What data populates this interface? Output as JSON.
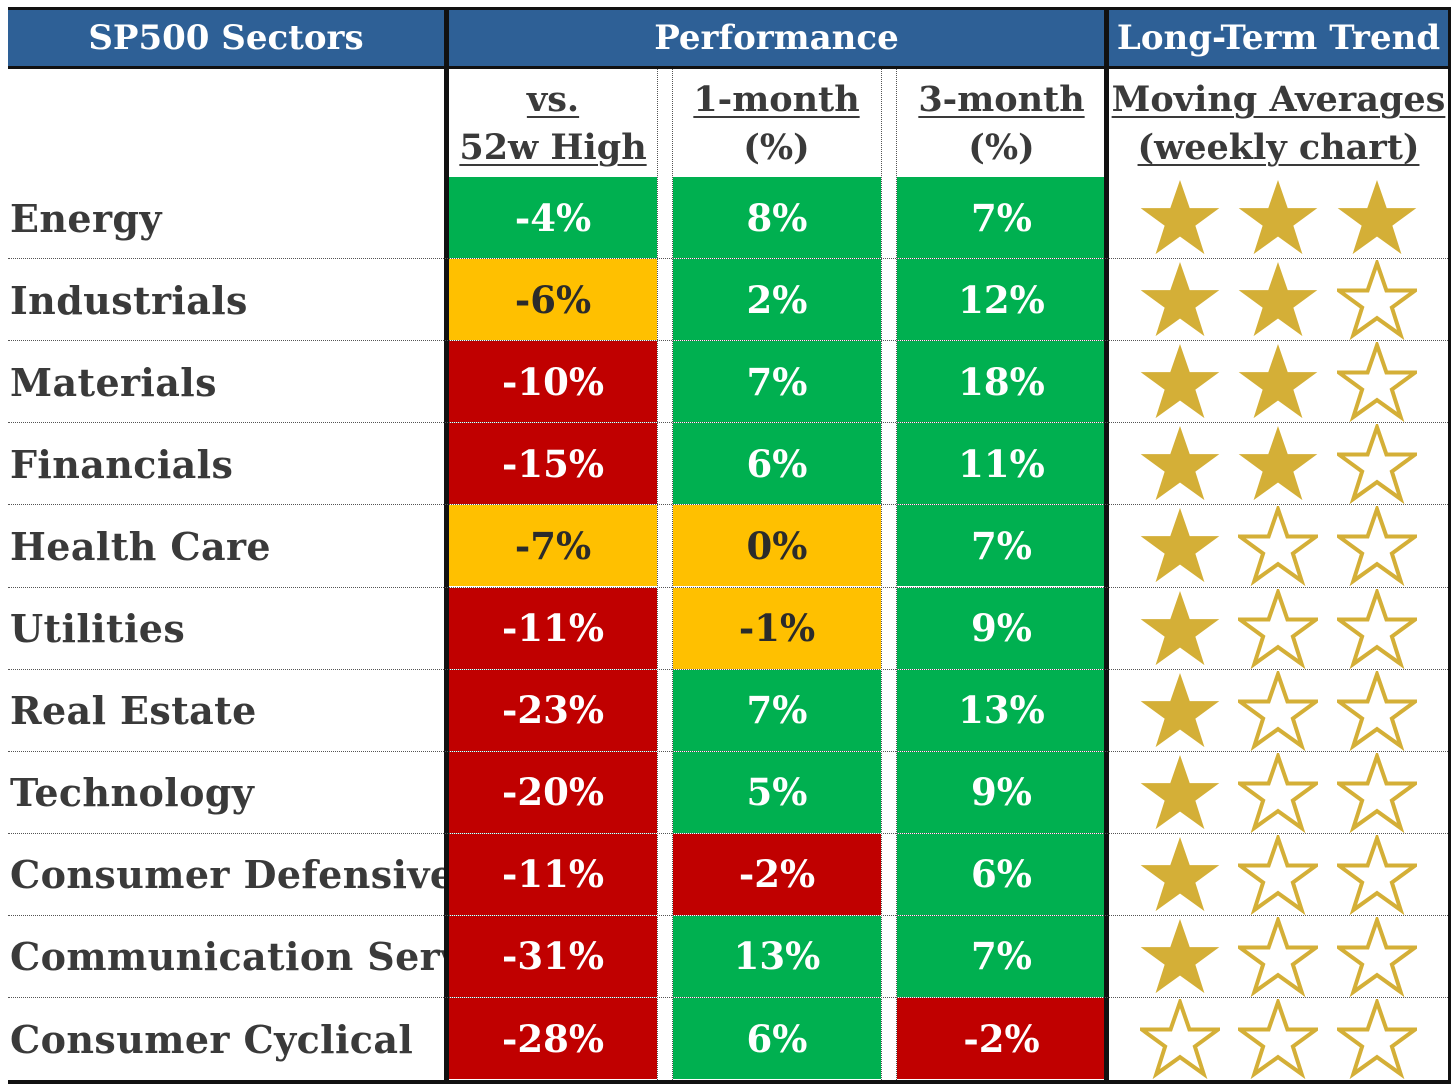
{
  "header": {
    "sectors_title": "SP500 Sectors",
    "performance_title": "Performance",
    "trend_title": "Long-Term Trend"
  },
  "subheader": {
    "col_52w_line1": "vs.",
    "col_52w_line2": "52w High",
    "col_1m_line1": "1-month",
    "col_1m_line2": "(%)",
    "col_3m_line1": "3-month",
    "col_3m_line2": "(%)",
    "col_ma_line1": "Moving Averages",
    "col_ma_line2": "(weekly chart)"
  },
  "colors": {
    "header_blue": "#2e6096",
    "green": "#00b050",
    "amber": "#ffc000",
    "red": "#c00000",
    "star_gold": "#d4af37"
  },
  "chart_data": {
    "type": "table",
    "columns": [
      "SP500 Sectors",
      "vs. 52w High",
      "1-month (%)",
      "3-month (%)",
      "Moving Averages (weekly chart)"
    ],
    "rows": [
      {
        "sector": "Energy",
        "vs52w": "-4%",
        "vs52w_color": "green",
        "m1": "8%",
        "m1_color": "green",
        "m3": "7%",
        "m3_color": "green",
        "stars": 3
      },
      {
        "sector": "Industrials",
        "vs52w": "-6%",
        "vs52w_color": "amber",
        "m1": "2%",
        "m1_color": "green",
        "m3": "12%",
        "m3_color": "green",
        "stars": 2
      },
      {
        "sector": "Materials",
        "vs52w": "-10%",
        "vs52w_color": "red",
        "m1": "7%",
        "m1_color": "green",
        "m3": "18%",
        "m3_color": "green",
        "stars": 2
      },
      {
        "sector": "Financials",
        "vs52w": "-15%",
        "vs52w_color": "red",
        "m1": "6%",
        "m1_color": "green",
        "m3": "11%",
        "m3_color": "green",
        "stars": 2
      },
      {
        "sector": "Health Care",
        "vs52w": "-7%",
        "vs52w_color": "amber",
        "m1": "0%",
        "m1_color": "amber",
        "m3": "7%",
        "m3_color": "green",
        "stars": 1
      },
      {
        "sector": "Utilities",
        "vs52w": "-11%",
        "vs52w_color": "red",
        "m1": "-1%",
        "m1_color": "amber",
        "m3": "9%",
        "m3_color": "green",
        "stars": 1
      },
      {
        "sector": "Real Estate",
        "vs52w": "-23%",
        "vs52w_color": "red",
        "m1": "7%",
        "m1_color": "green",
        "m3": "13%",
        "m3_color": "green",
        "stars": 1
      },
      {
        "sector": "Technology",
        "vs52w": "-20%",
        "vs52w_color": "red",
        "m1": "5%",
        "m1_color": "green",
        "m3": "9%",
        "m3_color": "green",
        "stars": 1
      },
      {
        "sector": "Consumer Defensive",
        "vs52w": "-11%",
        "vs52w_color": "red",
        "m1": "-2%",
        "m1_color": "red",
        "m3": "6%",
        "m3_color": "green",
        "stars": 1
      },
      {
        "sector": "Communication Serv.",
        "vs52w": "-31%",
        "vs52w_color": "red",
        "m1": "13%",
        "m1_color": "green",
        "m3": "7%",
        "m3_color": "green",
        "stars": 1
      },
      {
        "sector": "Consumer Cyclical",
        "vs52w": "-28%",
        "vs52w_color": "red",
        "m1": "6%",
        "m1_color": "green",
        "m3": "-2%",
        "m3_color": "red",
        "stars": 0
      }
    ],
    "max_stars": 3
  }
}
